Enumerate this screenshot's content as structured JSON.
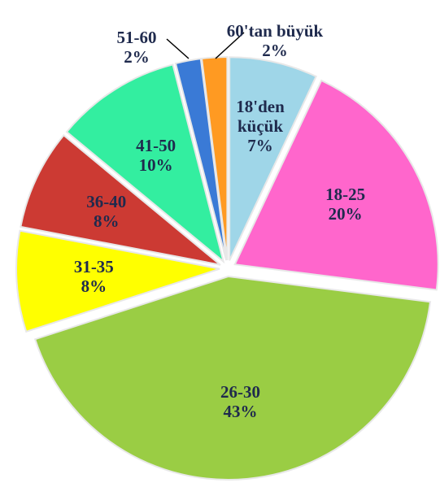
{
  "chart_data": {
    "type": "pie",
    "categories": [
      "18'den küçük",
      "18-25",
      "26-30",
      "31-35",
      "36-40",
      "41-50",
      "51-60",
      "60'tan büyük"
    ],
    "values": [
      7,
      20,
      43,
      8,
      8,
      10,
      2,
      2
    ],
    "value_labels": [
      "7%",
      "20%",
      "43%",
      "8%",
      "8%",
      "10%",
      "2%",
      "2%"
    ],
    "colors": [
      "#9fd6e8",
      "#ff66cc",
      "#9acd44",
      "#ffff00",
      "#cc3a33",
      "#33eea0",
      "#3a7ad6",
      "#ff9a22"
    ]
  }
}
